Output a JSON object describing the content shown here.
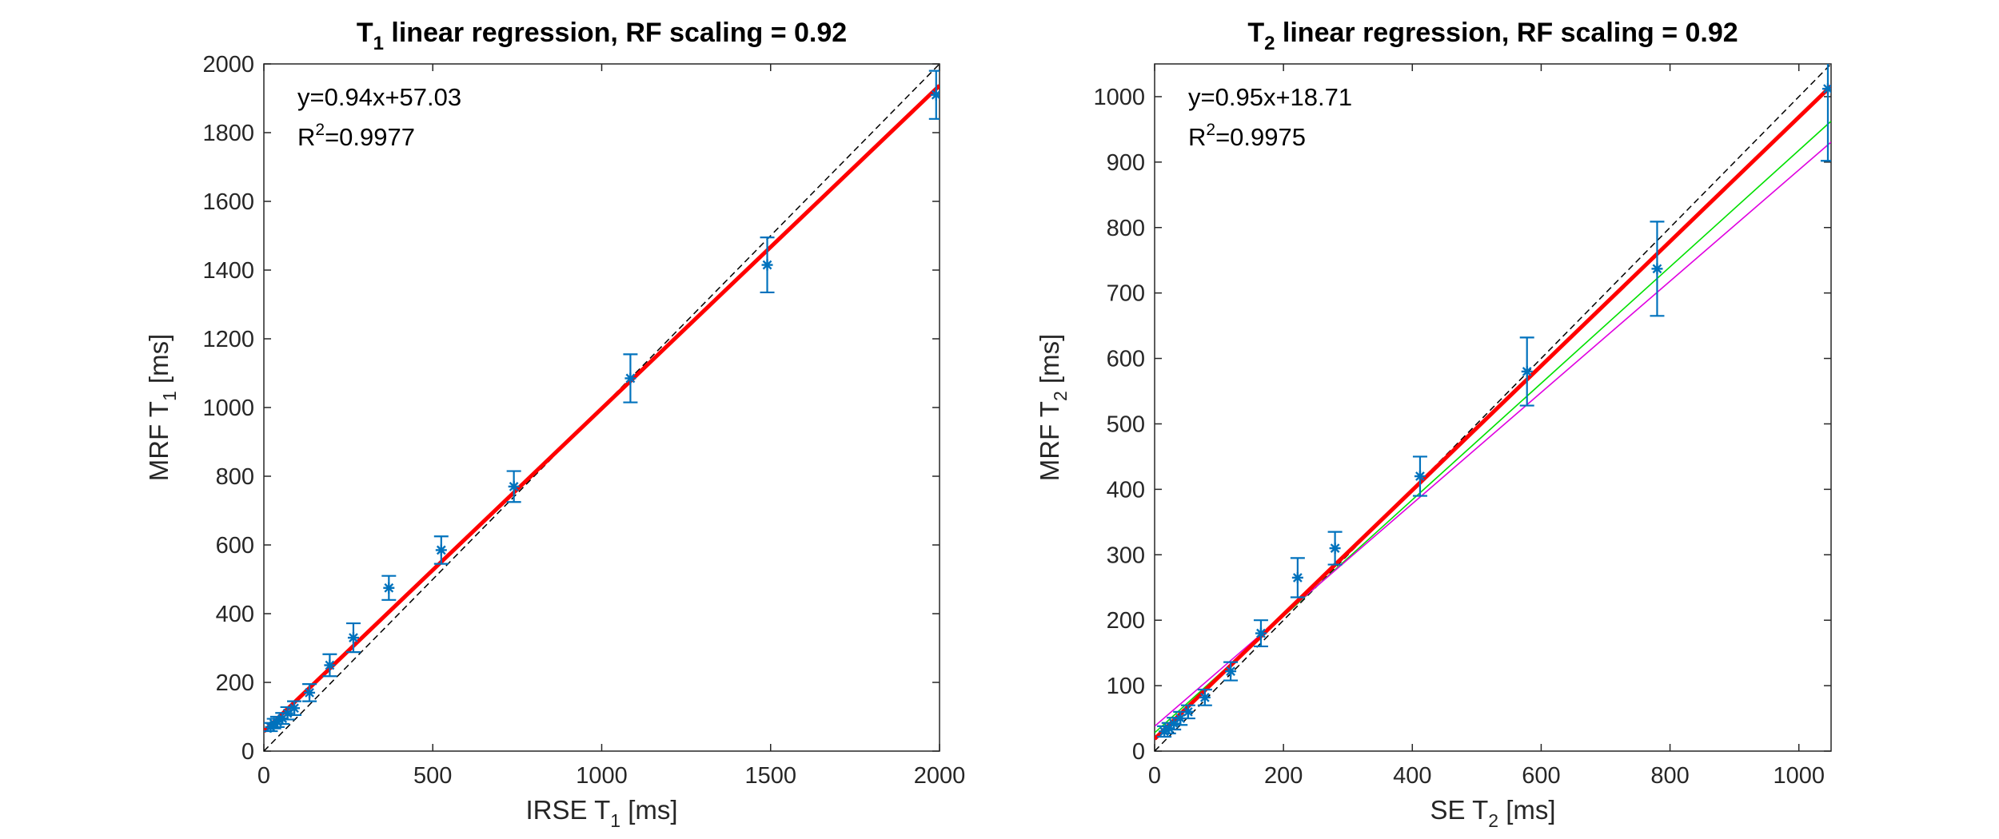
{
  "chart_data": [
    {
      "type": "scatter",
      "title": {
        "main": "T",
        "sub": "1",
        "rest": " linear regression, RF scaling = 0.92"
      },
      "xlabel": {
        "main": "IRSE T",
        "sub": "1",
        "rest": " [ms]"
      },
      "ylabel": {
        "main": "MRF T",
        "sub": "1",
        "rest": " [ms]"
      },
      "xlim": [
        0,
        2000
      ],
      "ylim": [
        0,
        2000
      ],
      "xticks": [
        0,
        500,
        1000,
        1500,
        2000
      ],
      "yticks": [
        0,
        200,
        400,
        600,
        800,
        1000,
        1200,
        1400,
        1600,
        1800,
        2000
      ],
      "annotation": {
        "equation": "y=0.94x+57.03",
        "r2_prefix": "R",
        "r2_sup": "2",
        "r2_value": "=0.9977"
      },
      "fit": {
        "slope": 0.94,
        "intercept": 57.03,
        "color": "#ff0000"
      },
      "identity_line": true,
      "extra_lines": [],
      "points": [
        {
          "x": 20,
          "y": 70,
          "err": 12
        },
        {
          "x": 30,
          "y": 80,
          "err": 14
        },
        {
          "x": 40,
          "y": 85,
          "err": 15
        },
        {
          "x": 55,
          "y": 95,
          "err": 16
        },
        {
          "x": 70,
          "y": 110,
          "err": 18
        },
        {
          "x": 90,
          "y": 125,
          "err": 20
        },
        {
          "x": 135,
          "y": 170,
          "err": 25
        },
        {
          "x": 195,
          "y": 250,
          "err": 32
        },
        {
          "x": 265,
          "y": 330,
          "err": 42
        },
        {
          "x": 370,
          "y": 475,
          "err": 35
        },
        {
          "x": 525,
          "y": 585,
          "err": 40
        },
        {
          "x": 740,
          "y": 770,
          "err": 45
        },
        {
          "x": 1085,
          "y": 1085,
          "err": 70
        },
        {
          "x": 1490,
          "y": 1415,
          "err": 80
        },
        {
          "x": 1990,
          "y": 1910,
          "err": 70
        }
      ],
      "point_color": "#0072bd"
    },
    {
      "type": "scatter",
      "title": {
        "main": "T",
        "sub": "2",
        "rest": " linear regression, RF scaling = 0.92"
      },
      "xlabel": {
        "main": "SE T",
        "sub": "2",
        "rest": " [ms]"
      },
      "ylabel": {
        "main": "MRF T",
        "sub": "2",
        "rest": " [ms]"
      },
      "xlim": [
        0,
        1050
      ],
      "ylim": [
        0,
        1050
      ],
      "xticks": [
        0,
        200,
        400,
        600,
        800,
        1000
      ],
      "yticks": [
        0,
        100,
        200,
        300,
        400,
        500,
        600,
        700,
        800,
        900,
        1000
      ],
      "annotation": {
        "equation": "y=0.95x+18.71",
        "r2_prefix": "R",
        "r2_sup": "2",
        "r2_value": "=0.9975"
      },
      "fit": {
        "slope": 0.95,
        "intercept": 18.71,
        "color": "#ff0000"
      },
      "identity_line": true,
      "extra_lines": [
        {
          "slope": 0.89,
          "intercept": 28,
          "color": "#00e000"
        },
        {
          "slope": 0.85,
          "intercept": 38,
          "color": "#e000e0"
        }
      ],
      "points": [
        {
          "x": 15,
          "y": 30,
          "err": 8
        },
        {
          "x": 22,
          "y": 35,
          "err": 8
        },
        {
          "x": 30,
          "y": 42,
          "err": 9
        },
        {
          "x": 40,
          "y": 50,
          "err": 10
        },
        {
          "x": 52,
          "y": 60,
          "err": 10
        },
        {
          "x": 78,
          "y": 82,
          "err": 12
        },
        {
          "x": 118,
          "y": 122,
          "err": 14
        },
        {
          "x": 165,
          "y": 180,
          "err": 20
        },
        {
          "x": 222,
          "y": 265,
          "err": 30
        },
        {
          "x": 280,
          "y": 310,
          "err": 25
        },
        {
          "x": 412,
          "y": 420,
          "err": 30
        },
        {
          "x": 578,
          "y": 580,
          "err": 52
        },
        {
          "x": 780,
          "y": 737,
          "err": 72
        },
        {
          "x": 1045,
          "y": 1012,
          "err": 110
        }
      ],
      "point_color": "#0072bd"
    }
  ]
}
